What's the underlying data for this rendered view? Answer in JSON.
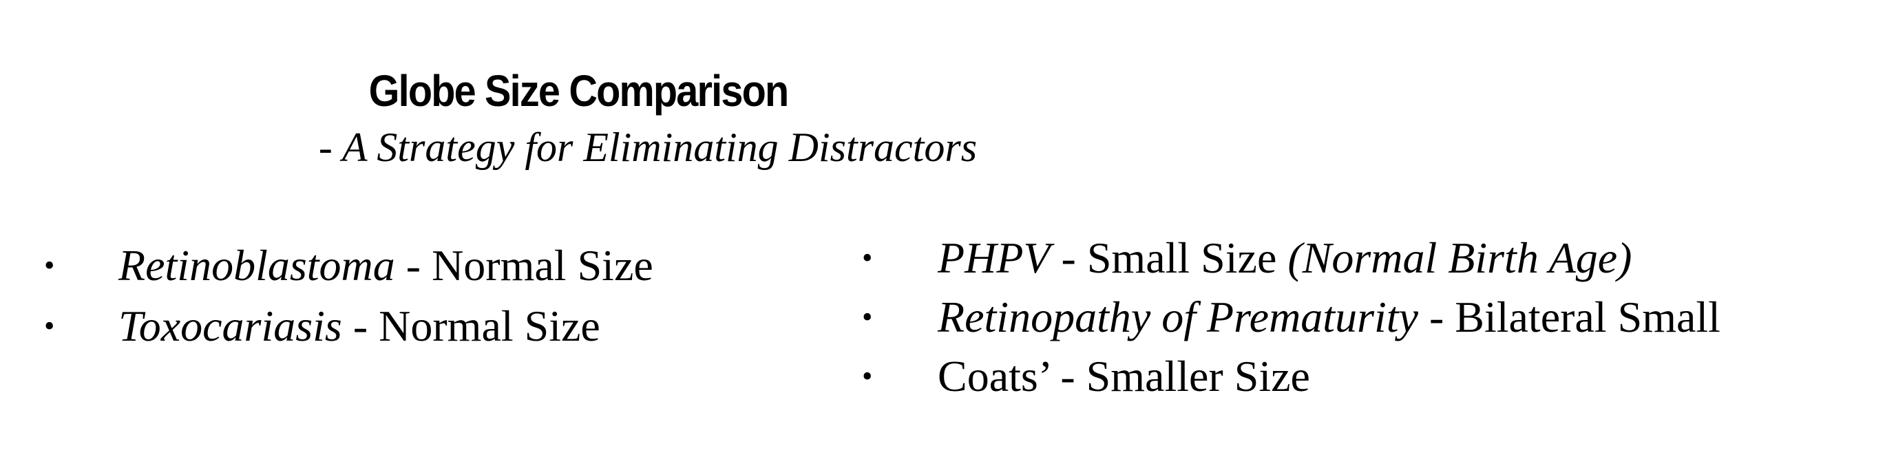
{
  "title": "Globe Size Comparison",
  "subtitle": "- A Strategy for Eliminating Distractors",
  "left_column": [
    {
      "term": "Retinoblastoma",
      "detail": " - Normal Size"
    },
    {
      "term": "Toxocariasis",
      "detail": " - Normal Size"
    }
  ],
  "right_column": [
    {
      "term": "PHPV",
      "detail": " - Small Size ",
      "note": "(Normal Birth Age)"
    },
    {
      "term": "Retinopathy of Prematurity",
      "detail": " - Bilateral Small"
    },
    {
      "text": "Coats’ - Smaller Size"
    }
  ],
  "bullet_symbol": "•"
}
